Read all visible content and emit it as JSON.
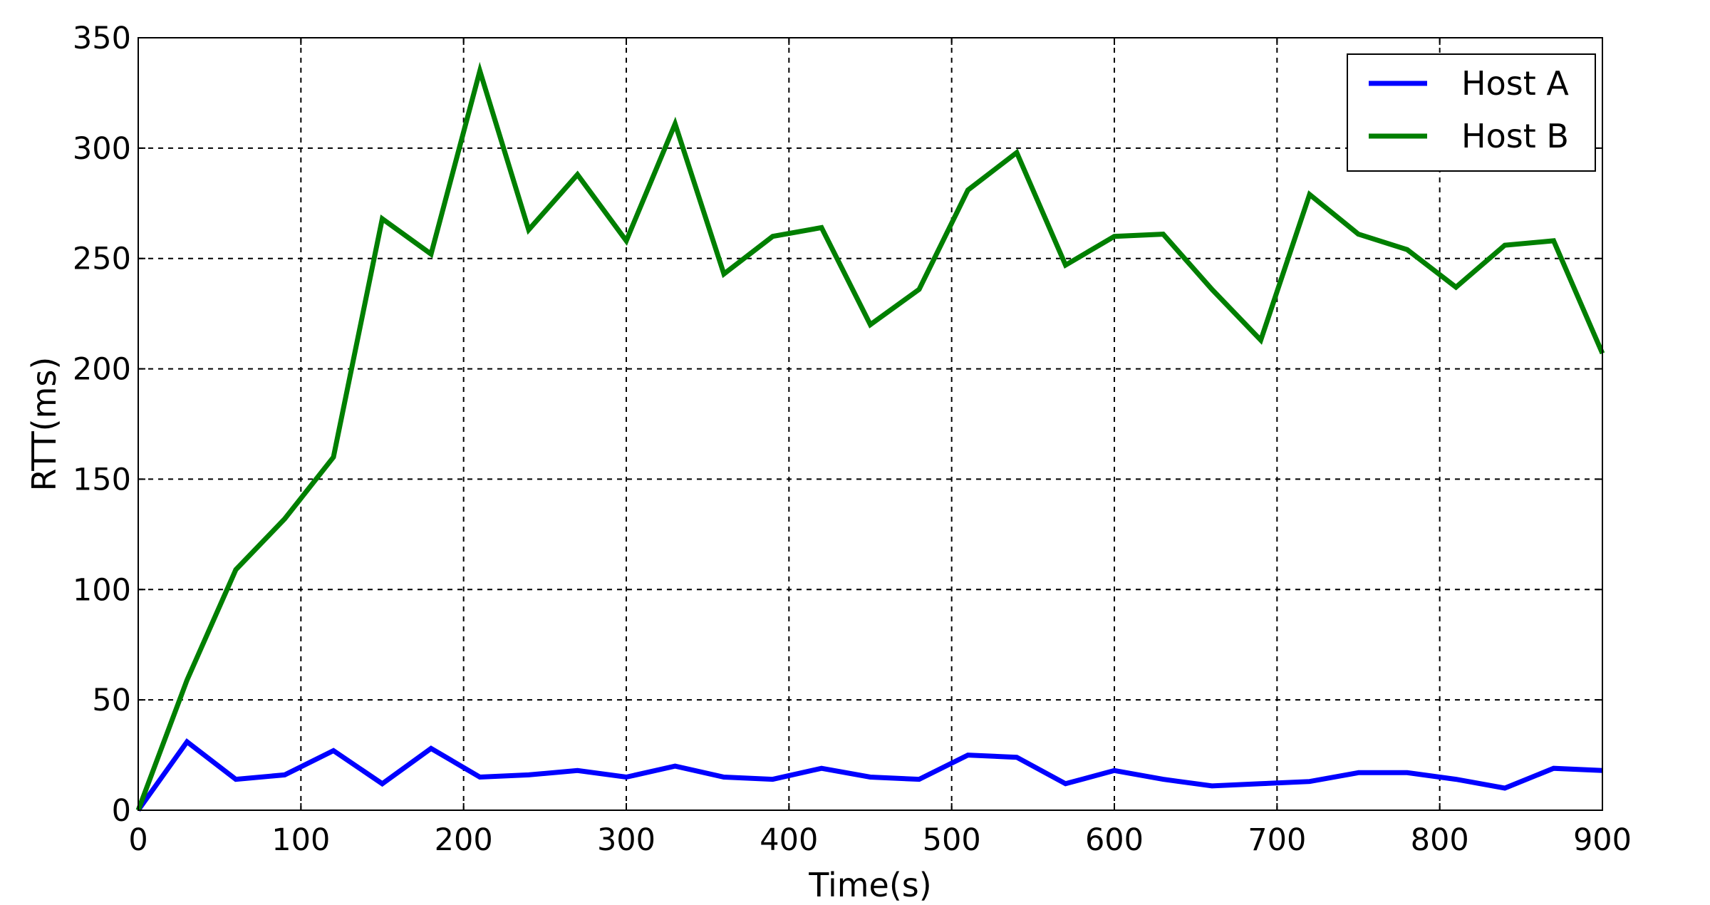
{
  "chart_data": {
    "type": "line",
    "title": "",
    "xlabel": "Time(s)",
    "ylabel": "RTT(ms)",
    "xlim": [
      0,
      900
    ],
    "ylim": [
      0,
      350
    ],
    "xticks": [
      0,
      100,
      200,
      300,
      400,
      500,
      600,
      700,
      800,
      900
    ],
    "yticks": [
      0,
      50,
      100,
      150,
      200,
      250,
      300,
      350
    ],
    "xtick_labels": [
      "0",
      "100",
      "200",
      "300",
      "400",
      "500",
      "600",
      "700",
      "800",
      "900"
    ],
    "ytick_labels": [
      "0",
      "50",
      "100",
      "150",
      "200",
      "250",
      "300",
      "350"
    ],
    "grid": true,
    "legend_position": "top-right",
    "x": [
      0,
      30,
      60,
      90,
      120,
      150,
      180,
      210,
      240,
      270,
      300,
      330,
      360,
      390,
      420,
      450,
      480,
      510,
      540,
      570,
      600,
      630,
      660,
      690,
      720,
      750,
      780,
      810,
      840,
      870,
      900
    ],
    "series": [
      {
        "name": "Host A",
        "color": "#0000ff",
        "values": [
          0,
          31,
          14,
          16,
          27,
          12,
          28,
          15,
          16,
          18,
          15,
          20,
          15,
          14,
          19,
          15,
          14,
          25,
          24,
          12,
          18,
          14,
          11,
          12,
          13,
          17,
          17,
          14,
          10,
          19,
          18
        ]
      },
      {
        "name": "Host B",
        "color": "#007f00",
        "values": [
          0,
          59,
          109,
          132,
          160,
          268,
          252,
          335,
          263,
          288,
          258,
          311,
          243,
          260,
          264,
          220,
          236,
          281,
          298,
          247,
          260,
          261,
          236,
          213,
          279,
          261,
          254,
          237,
          256,
          258,
          207
        ]
      }
    ]
  }
}
